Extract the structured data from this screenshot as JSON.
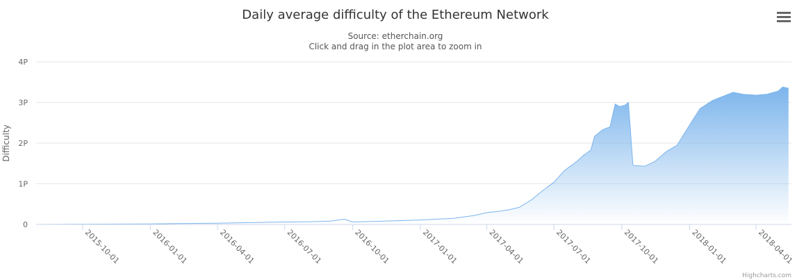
{
  "chart_data": {
    "type": "area",
    "title": "Daily average difficulty of the Ethereum Network",
    "subtitle_lines": [
      "Source: etherchain.org",
      "Click and drag in the plot area to zoom in"
    ],
    "ylabel": "Difficulty",
    "ylim_P": [
      0,
      4
    ],
    "ytick_labels": [
      "0",
      "1P",
      "2P",
      "3P",
      "4P"
    ],
    "xlim": [
      "2015-07-30",
      "2018-05-19"
    ],
    "xtick_dates": [
      "2015-10-01",
      "2016-01-01",
      "2016-04-01",
      "2016-07-01",
      "2016-10-01",
      "2017-01-01",
      "2017-04-01",
      "2017-07-01",
      "2017-10-01",
      "2018-01-01",
      "2018-04-01"
    ],
    "grid": true,
    "legend": "none",
    "series": [
      {
        "values_unit": "P",
        "x": [
          "2015-07-30",
          "2015-10-01",
          "2016-01-01",
          "2016-04-01",
          "2016-07-01",
          "2016-08-01",
          "2016-09-01",
          "2016-09-20",
          "2016-10-01",
          "2016-10-10",
          "2016-11-01",
          "2017-01-01",
          "2017-02-15",
          "2017-03-15",
          "2017-04-01",
          "2017-04-20",
          "2017-05-01",
          "2017-05-15",
          "2017-06-01",
          "2017-06-15",
          "2017-07-01",
          "2017-07-15",
          "2017-08-01",
          "2017-08-10",
          "2017-08-20",
          "2017-08-25",
          "2017-09-05",
          "2017-09-15",
          "2017-09-22",
          "2017-09-28",
          "2017-10-05",
          "2017-10-10",
          "2017-10-16",
          "2017-10-17",
          "2017-11-01",
          "2017-11-15",
          "2017-12-01",
          "2017-12-15",
          "2018-01-01",
          "2018-01-15",
          "2018-02-01",
          "2018-02-15",
          "2018-03-01",
          "2018-03-15",
          "2018-04-01",
          "2018-04-15",
          "2018-05-01",
          "2018-05-07",
          "2018-05-15"
        ],
        "values": [
          0.0,
          0.007,
          0.013,
          0.03,
          0.06,
          0.065,
          0.08,
          0.13,
          0.06,
          0.065,
          0.075,
          0.11,
          0.15,
          0.22,
          0.29,
          0.33,
          0.36,
          0.42,
          0.61,
          0.82,
          1.04,
          1.32,
          1.55,
          1.7,
          1.83,
          2.17,
          2.33,
          2.4,
          2.96,
          2.9,
          2.93,
          3.0,
          1.48,
          1.45,
          1.43,
          1.55,
          1.8,
          1.95,
          2.45,
          2.85,
          3.05,
          3.15,
          3.25,
          3.2,
          3.18,
          3.2,
          3.28,
          3.38,
          3.35
        ]
      }
    ],
    "credits": "Highcharts.com",
    "colors": {
      "line": "#7cb5ec",
      "title": "#333333",
      "subtitle": "#555555",
      "axis_text": "#666666",
      "grid": "#e6e6e6"
    }
  },
  "menu": {
    "icon": "hamburger-menu-icon"
  }
}
